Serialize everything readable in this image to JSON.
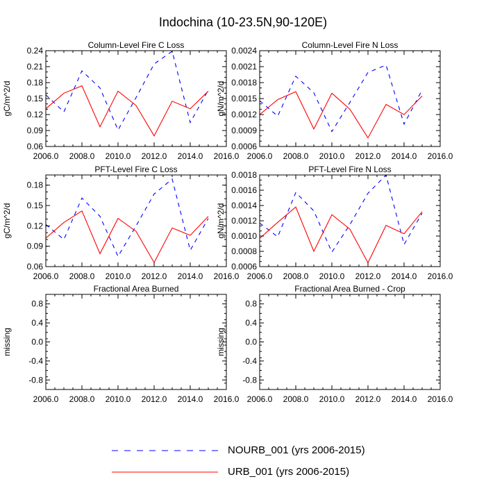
{
  "title": "Indochina (10-23.5N,90-120E)",
  "legend": [
    {
      "name": "NOURB_001 (yrs 2006-2015)",
      "color": "#0000ff",
      "dash": true
    },
    {
      "name": "URB_001 (yrs 2006-2015)",
      "color": "#ff0000",
      "dash": false
    }
  ],
  "chart_data": [
    {
      "type": "line",
      "title": "Column-Level Fire C Loss",
      "ylabel": "gC/m^2/d",
      "xlim": [
        2006,
        2016
      ],
      "ylim": [
        0.06,
        0.24
      ],
      "xticks": [
        2006,
        2008,
        2010,
        2012,
        2014,
        2016
      ],
      "xtick_labels": [
        "2006.0",
        "2008.0",
        "2010.0",
        "2012.0",
        "2014.0",
        "2016.0"
      ],
      "yticks": [
        0.06,
        0.09,
        0.12,
        0.15,
        0.18,
        0.21,
        0.24
      ],
      "ytick_labels": [
        "0.06",
        "0.09",
        "0.12",
        "0.15",
        "0.18",
        "0.21",
        "0.24"
      ],
      "x": [
        2006,
        2007,
        2008,
        2009,
        2010,
        2011,
        2012,
        2013,
        2014,
        2015
      ],
      "series": [
        {
          "name": "NOURB_001 (yrs 2006-2015)",
          "values": [
            0.157,
            0.125,
            0.202,
            0.17,
            0.091,
            0.152,
            0.215,
            0.239,
            0.105,
            0.166
          ]
        },
        {
          "name": "URB_001 (yrs 2006-2015)",
          "values": [
            0.131,
            0.16,
            0.174,
            0.097,
            0.164,
            0.137,
            0.08,
            0.145,
            0.131,
            0.164
          ]
        }
      ]
    },
    {
      "type": "line",
      "title": "Column-Level Fire N Loss",
      "ylabel": "gN/m^2/d",
      "xlim": [
        2006,
        2016
      ],
      "ylim": [
        0.0006,
        0.0024
      ],
      "xticks": [
        2006,
        2008,
        2010,
        2012,
        2014,
        2016
      ],
      "xtick_labels": [
        "2006.0",
        "2008.0",
        "2010.0",
        "2012.0",
        "2014.0",
        "2016.0"
      ],
      "yticks": [
        0.0006,
        0.0009,
        0.0012,
        0.0015,
        0.0018,
        0.0021,
        0.0024
      ],
      "ytick_labels": [
        "0.0006",
        "0.0009",
        "0.0012",
        "0.0015",
        "0.0018",
        "0.0021",
        "0.0024"
      ],
      "x": [
        2006,
        2007,
        2008,
        2009,
        2010,
        2011,
        2012,
        2013,
        2014,
        2015
      ],
      "series": [
        {
          "name": "NOURB_001 (yrs 2006-2015)",
          "values": [
            0.00146,
            0.00117,
            0.00192,
            0.00161,
            0.00088,
            0.00143,
            0.00199,
            0.00213,
            0.00102,
            0.00166
          ]
        },
        {
          "name": "URB_001 (yrs 2006-2015)",
          "values": [
            0.0012,
            0.00148,
            0.00163,
            0.00093,
            0.0016,
            0.0013,
            0.00076,
            0.00139,
            0.0012,
            0.00155
          ]
        }
      ]
    },
    {
      "type": "line",
      "title": "PFT-Level Fire C Loss",
      "ylabel": "gC/m^2/d",
      "xlim": [
        2006,
        2016
      ],
      "ylim": [
        0.06,
        0.195
      ],
      "xticks": [
        2006,
        2008,
        2010,
        2012,
        2014,
        2016
      ],
      "xtick_labels": [
        "2006.0",
        "2008.0",
        "2010.0",
        "2012.0",
        "2014.0",
        "2016.0"
      ],
      "yticks": [
        0.06,
        0.09,
        0.12,
        0.15,
        0.18
      ],
      "ytick_labels": [
        "0.06",
        "0.09",
        "0.12",
        "0.15",
        "0.18"
      ],
      "x": [
        2006,
        2007,
        2008,
        2009,
        2010,
        2011,
        2012,
        2013,
        2014,
        2015
      ],
      "series": [
        {
          "name": "NOURB_001 (yrs 2006-2015)",
          "values": [
            0.122,
            0.1,
            0.161,
            0.134,
            0.075,
            0.12,
            0.167,
            0.189,
            0.084,
            0.131
          ]
        },
        {
          "name": "URB_001 (yrs 2006-2015)",
          "values": [
            0.102,
            0.125,
            0.142,
            0.079,
            0.131,
            0.112,
            0.066,
            0.117,
            0.106,
            0.134
          ]
        }
      ]
    },
    {
      "type": "line",
      "title": "PFT-Level Fire N Loss",
      "ylabel": "gN/m^2/d",
      "xlim": [
        2006,
        2016
      ],
      "ylim": [
        0.0006,
        0.0018
      ],
      "xticks": [
        2006,
        2008,
        2010,
        2012,
        2014,
        2016
      ],
      "xtick_labels": [
        "2006.0",
        "2008.0",
        "2010.0",
        "2012.0",
        "2014.0",
        "2016.0"
      ],
      "yticks": [
        0.0006,
        0.0008,
        0.001,
        0.0012,
        0.0014,
        0.0016,
        0.0018
      ],
      "ytick_labels": [
        "0.0006",
        "0.0008",
        "0.0010",
        "0.0012",
        "0.0014",
        "0.0016",
        "0.0018"
      ],
      "x": [
        2006,
        2007,
        2008,
        2009,
        2010,
        2011,
        2012,
        2013,
        2014,
        2015
      ],
      "series": [
        {
          "name": "NOURB_001 (yrs 2006-2015)",
          "values": [
            0.00117,
            0.00099,
            0.00157,
            0.00133,
            0.00079,
            0.00115,
            0.00156,
            0.0018,
            0.00089,
            0.0013
          ]
        },
        {
          "name": "URB_001 (yrs 2006-2015)",
          "values": [
            0.00097,
            0.00118,
            0.00138,
            0.0008,
            0.00128,
            0.00109,
            0.00065,
            0.00114,
            0.00103,
            0.00132
          ]
        }
      ]
    },
    {
      "type": "line",
      "title": "Fractional Area Burned",
      "ylabel": "missing",
      "xlim": [
        2006,
        2016
      ],
      "ylim": [
        -1.0,
        1.0
      ],
      "xticks": [
        2006,
        2008,
        2010,
        2012,
        2014,
        2016
      ],
      "xtick_labels": [
        "2006.0",
        "2008.0",
        "2010.0",
        "2012.0",
        "2014.0",
        "2016.0"
      ],
      "yticks": [
        -0.8,
        -0.4,
        0.0,
        0.4,
        0.8
      ],
      "ytick_labels": [
        "-0.8",
        "-0.4",
        "0.0",
        "0.4",
        "0.8"
      ],
      "x": [],
      "series": []
    },
    {
      "type": "line",
      "title": "Fractional Area Burned - Crop",
      "ylabel": "missing",
      "xlim": [
        2006,
        2016
      ],
      "ylim": [
        -1.0,
        1.0
      ],
      "xticks": [
        2006,
        2008,
        2010,
        2012,
        2014,
        2016
      ],
      "xtick_labels": [
        "2006.0",
        "2008.0",
        "2010.0",
        "2012.0",
        "2014.0",
        "2016.0"
      ],
      "yticks": [
        -0.8,
        -0.4,
        0.0,
        0.4,
        0.8
      ],
      "ytick_labels": [
        "-0.8",
        "-0.4",
        "0.0",
        "0.4",
        "0.8"
      ],
      "x": [],
      "series": []
    }
  ]
}
